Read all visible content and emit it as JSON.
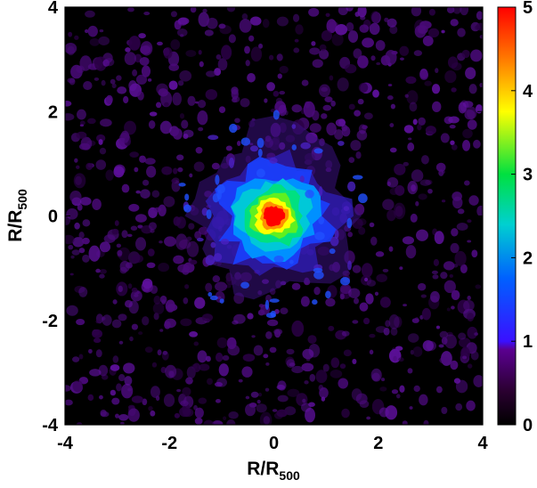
{
  "chart_data": {
    "type": "heatmap",
    "xlabel": {
      "base": "R/R",
      "sub": "500"
    },
    "ylabel": {
      "base": "R/R",
      "sub": "500"
    },
    "xlim": [
      -4,
      4
    ],
    "ylim": [
      -4,
      4
    ],
    "xticks": [
      "-4",
      "-2",
      "0",
      "2",
      "4"
    ],
    "yticks": [
      "-4",
      "-2",
      "0",
      "2",
      "4"
    ],
    "colorbar": {
      "range": [
        0,
        5
      ],
      "ticks": [
        "0",
        "1",
        "2",
        "3",
        "4",
        "5"
      ],
      "colormap": [
        "#000000",
        "#2a0030",
        "#5a0090",
        "#1010ff",
        "#00b0ff",
        "#00e070",
        "#ffff00",
        "#ff8000",
        "#ff0000"
      ]
    },
    "peak": {
      "x": 0,
      "y": 0,
      "value": 5
    },
    "background_level": 0.4
  }
}
